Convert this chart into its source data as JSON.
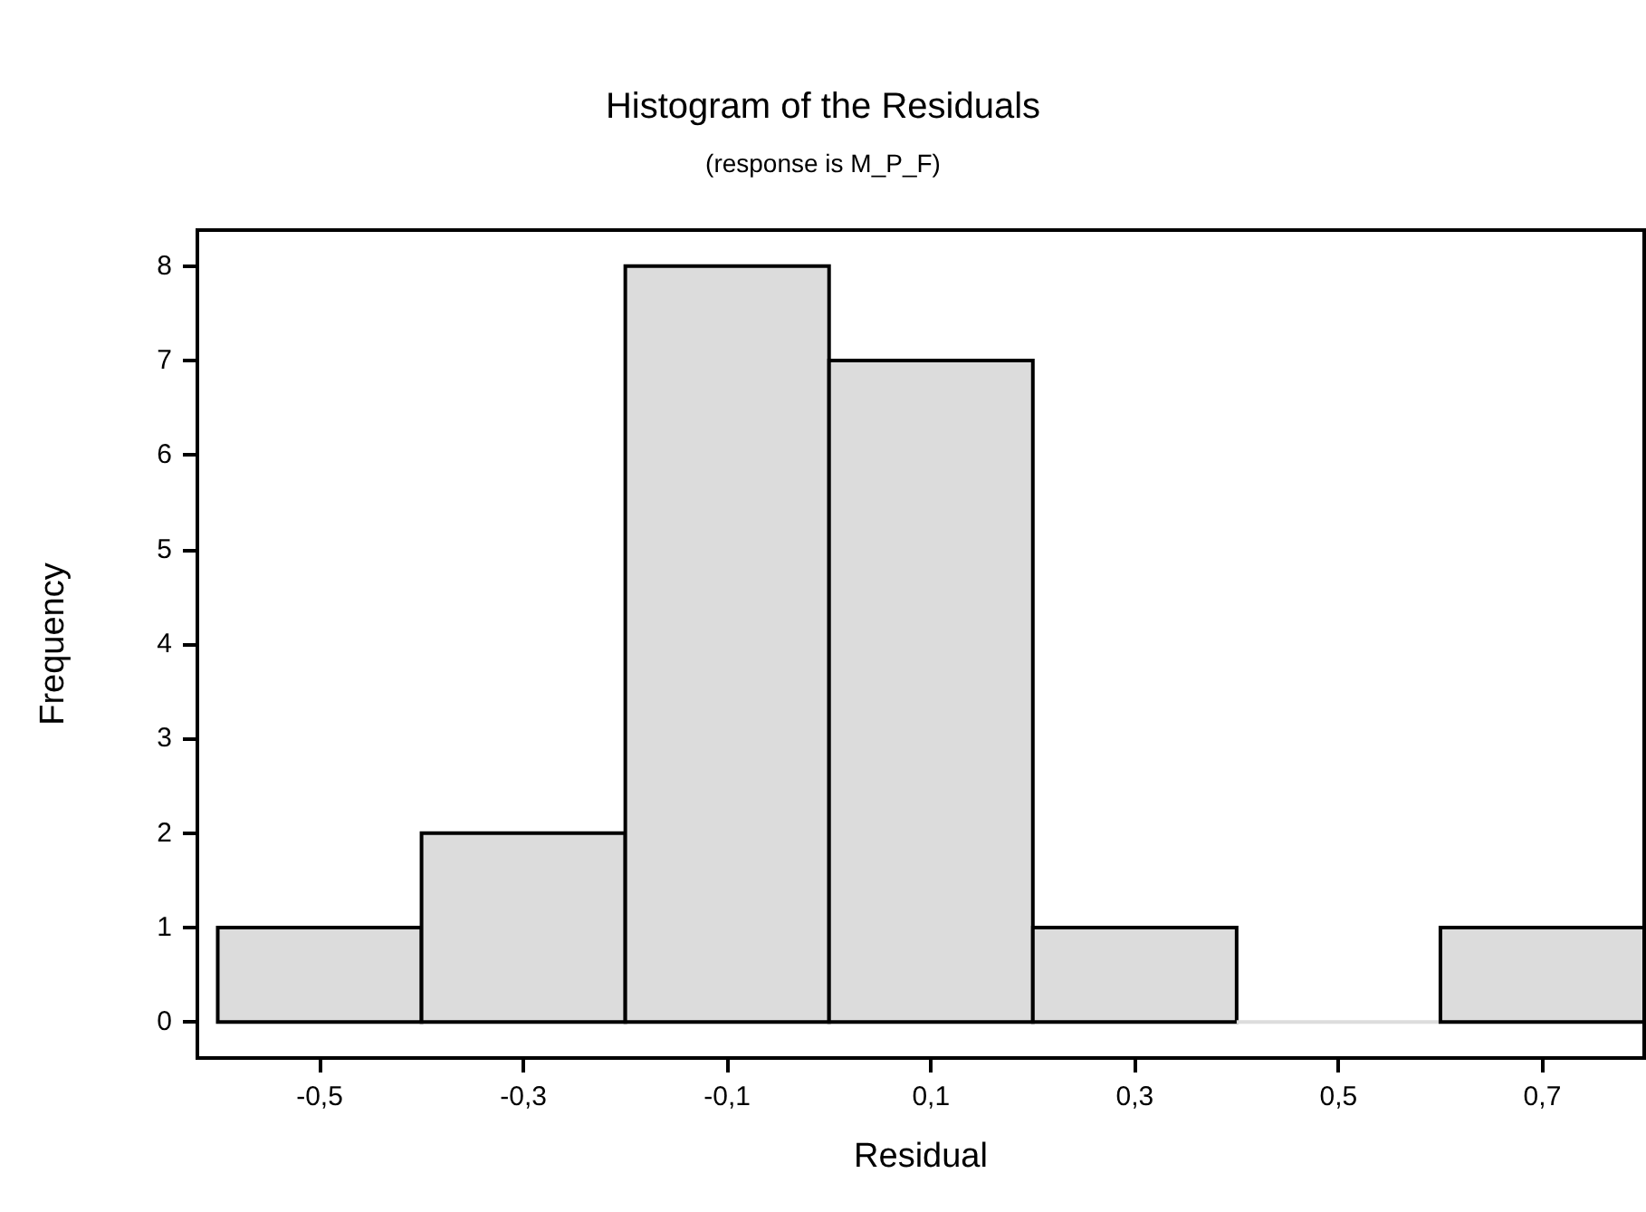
{
  "chart_data": {
    "type": "histogram",
    "title": "Histogram of the Residuals",
    "subtitle": "(response is M_P_F)",
    "xlabel": "Residual",
    "ylabel": "Frequency",
    "bins": [
      -0.6,
      -0.4,
      -0.2,
      0,
      0.2,
      0.4,
      0.6,
      0.8
    ],
    "values": [
      1,
      2,
      8,
      7,
      1,
      0,
      1
    ],
    "color": "#dcdcdc",
    "xlim": [
      -0.62,
      0.8
    ],
    "ylim": [
      -0.38,
      8.38
    ],
    "xticks": [
      {
        "value": -0.5,
        "label": "-0,5"
      },
      {
        "value": -0.3,
        "label": "-0,3"
      },
      {
        "value": -0.1,
        "label": "-0,1"
      },
      {
        "value": 0.1,
        "label": "0,1"
      },
      {
        "value": 0.3,
        "label": "0,3"
      },
      {
        "value": 0.5,
        "label": "0,5"
      },
      {
        "value": 0.7,
        "label": "0,7"
      }
    ],
    "yticks": [
      0,
      1,
      2,
      3,
      4,
      5,
      6,
      7,
      8
    ],
    "grid": false
  }
}
